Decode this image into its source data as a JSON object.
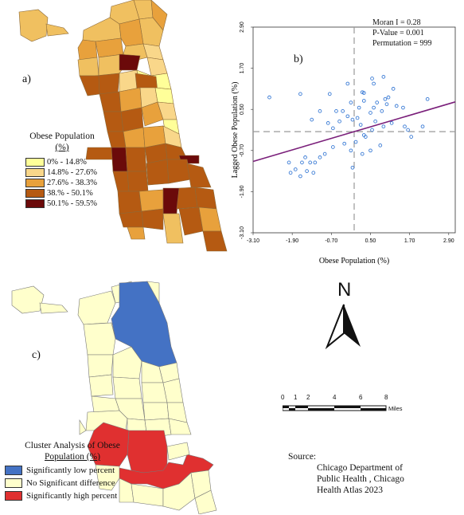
{
  "panel_a": {
    "label": "a)",
    "legend_title_line1": "Obese Population",
    "legend_title_line2": "(%)",
    "legend": [
      {
        "label": "0% - 14.8%",
        "color": "#ffff99"
      },
      {
        "label": "14.8% - 27.6%",
        "color": "#f9d78a"
      },
      {
        "label": "27.6% - 38.3%",
        "color": "#e8a13c"
      },
      {
        "label": "38.% - 50.1%",
        "color": "#b55a12"
      },
      {
        "label": "50.1% - 59.5%",
        "color": "#6b0a0a"
      }
    ]
  },
  "panel_b": {
    "label": "b)",
    "stats": [
      "Moran I = 0.28",
      "P-Value = 0.001",
      "Permutation = 999"
    ],
    "chart_data": {
      "type": "scatter",
      "xlabel": "Obese Population (%)",
      "ylabel": "Lagged Obese Population (%)",
      "xlim": [
        -3.1,
        3.1
      ],
      "ylim": [
        -3.1,
        2.9
      ],
      "xticks": [
        "-3.10",
        "-1.90",
        "-0.70",
        "0.50",
        "1.70",
        "2.90"
      ],
      "yticks": [
        "-3.10",
        "-1.90",
        "-0.70",
        "0.50",
        "1.70",
        "2.90"
      ],
      "xtick_values": [
        -3.1,
        -1.9,
        -0.7,
        0.5,
        1.7,
        2.9
      ],
      "ytick_values": [
        -3.1,
        -1.9,
        -0.7,
        0.5,
        1.7,
        2.9
      ],
      "reference_x": 0,
      "reference_y": -0.15,
      "regression": {
        "slope": 0.28,
        "intercept": -0.15
      },
      "points": [
        [
          -2.6,
          0.85
        ],
        [
          -1.65,
          0.95
        ],
        [
          -0.75,
          0.95
        ],
        [
          0.25,
          1.0
        ],
        [
          0.3,
          0.98
        ],
        [
          0.55,
          1.4
        ],
        [
          0.6,
          1.25
        ],
        [
          -0.2,
          1.25
        ],
        [
          0.9,
          1.45
        ],
        [
          1.2,
          1.1
        ],
        [
          0.95,
          0.8
        ],
        [
          1.05,
          0.85
        ],
        [
          0.6,
          0.55
        ],
        [
          0.5,
          0.4
        ],
        [
          0.85,
          0.45
        ],
        [
          1.0,
          0.65
        ],
        [
          0.7,
          0.7
        ],
        [
          1.3,
          0.6
        ],
        [
          0.3,
          0.75
        ],
        [
          -0.1,
          0.7
        ],
        [
          0.15,
          0.55
        ],
        [
          -0.05,
          0.2
        ],
        [
          0.1,
          0.25
        ],
        [
          0.2,
          0.05
        ],
        [
          -0.2,
          0.3
        ],
        [
          -0.35,
          0.45
        ],
        [
          -0.55,
          0.45
        ],
        [
          -0.45,
          0.15
        ],
        [
          -0.65,
          -0.05
        ],
        [
          -0.8,
          0.1
        ],
        [
          -1.05,
          0.45
        ],
        [
          -1.3,
          0.2
        ],
        [
          0.65,
          0.15
        ],
        [
          0.9,
          0.0
        ],
        [
          1.15,
          0.1
        ],
        [
          1.55,
          0.0
        ],
        [
          1.75,
          -0.3
        ],
        [
          2.1,
          0.0
        ],
        [
          2.25,
          0.8
        ],
        [
          1.5,
          0.55
        ],
        [
          0.35,
          -0.3
        ],
        [
          0.55,
          -0.1
        ],
        [
          0.05,
          -0.45
        ],
        [
          -0.1,
          -0.7
        ],
        [
          -0.3,
          -0.5
        ],
        [
          -0.65,
          -0.6
        ],
        [
          -0.9,
          -0.8
        ],
        [
          -1.05,
          -0.9
        ],
        [
          -1.2,
          -1.05
        ],
        [
          -1.35,
          -1.05
        ],
        [
          -1.5,
          -0.9
        ],
        [
          -1.6,
          -1.05
        ],
        [
          -1.8,
          -1.25
        ],
        [
          -1.95,
          -1.35
        ],
        [
          -2.0,
          -1.05
        ],
        [
          -1.25,
          -1.35
        ],
        [
          -1.45,
          -1.3
        ],
        [
          -1.65,
          -1.45
        ],
        [
          -0.05,
          -1.2
        ],
        [
          0.25,
          -0.8
        ],
        [
          0.5,
          -0.7
        ],
        [
          0.8,
          -0.55
        ],
        [
          0.3,
          -0.25
        ],
        [
          1.65,
          -0.1
        ]
      ]
    }
  },
  "panel_c": {
    "label": "c)",
    "legend_title_line1": "Cluster Analysis of Obese",
    "legend_title_line2": "Population (%)",
    "legend": [
      {
        "label": "Significantly  low percent",
        "color": "#4472c4"
      },
      {
        "label": "No Significant difference",
        "color": "#ffffcc"
      },
      {
        "label": "Significantly  high percent",
        "color": "#e03030"
      }
    ]
  },
  "north_arrow": {
    "letter": "N"
  },
  "scale_bar": {
    "ticks": [
      "0",
      "1",
      "2",
      "4",
      "6",
      "8"
    ],
    "unit": "Miles"
  },
  "source": {
    "label": "Source:",
    "lines": [
      "Chicago Department of",
      "Public Health , Chicago",
      "Health Atlas 2023"
    ]
  }
}
